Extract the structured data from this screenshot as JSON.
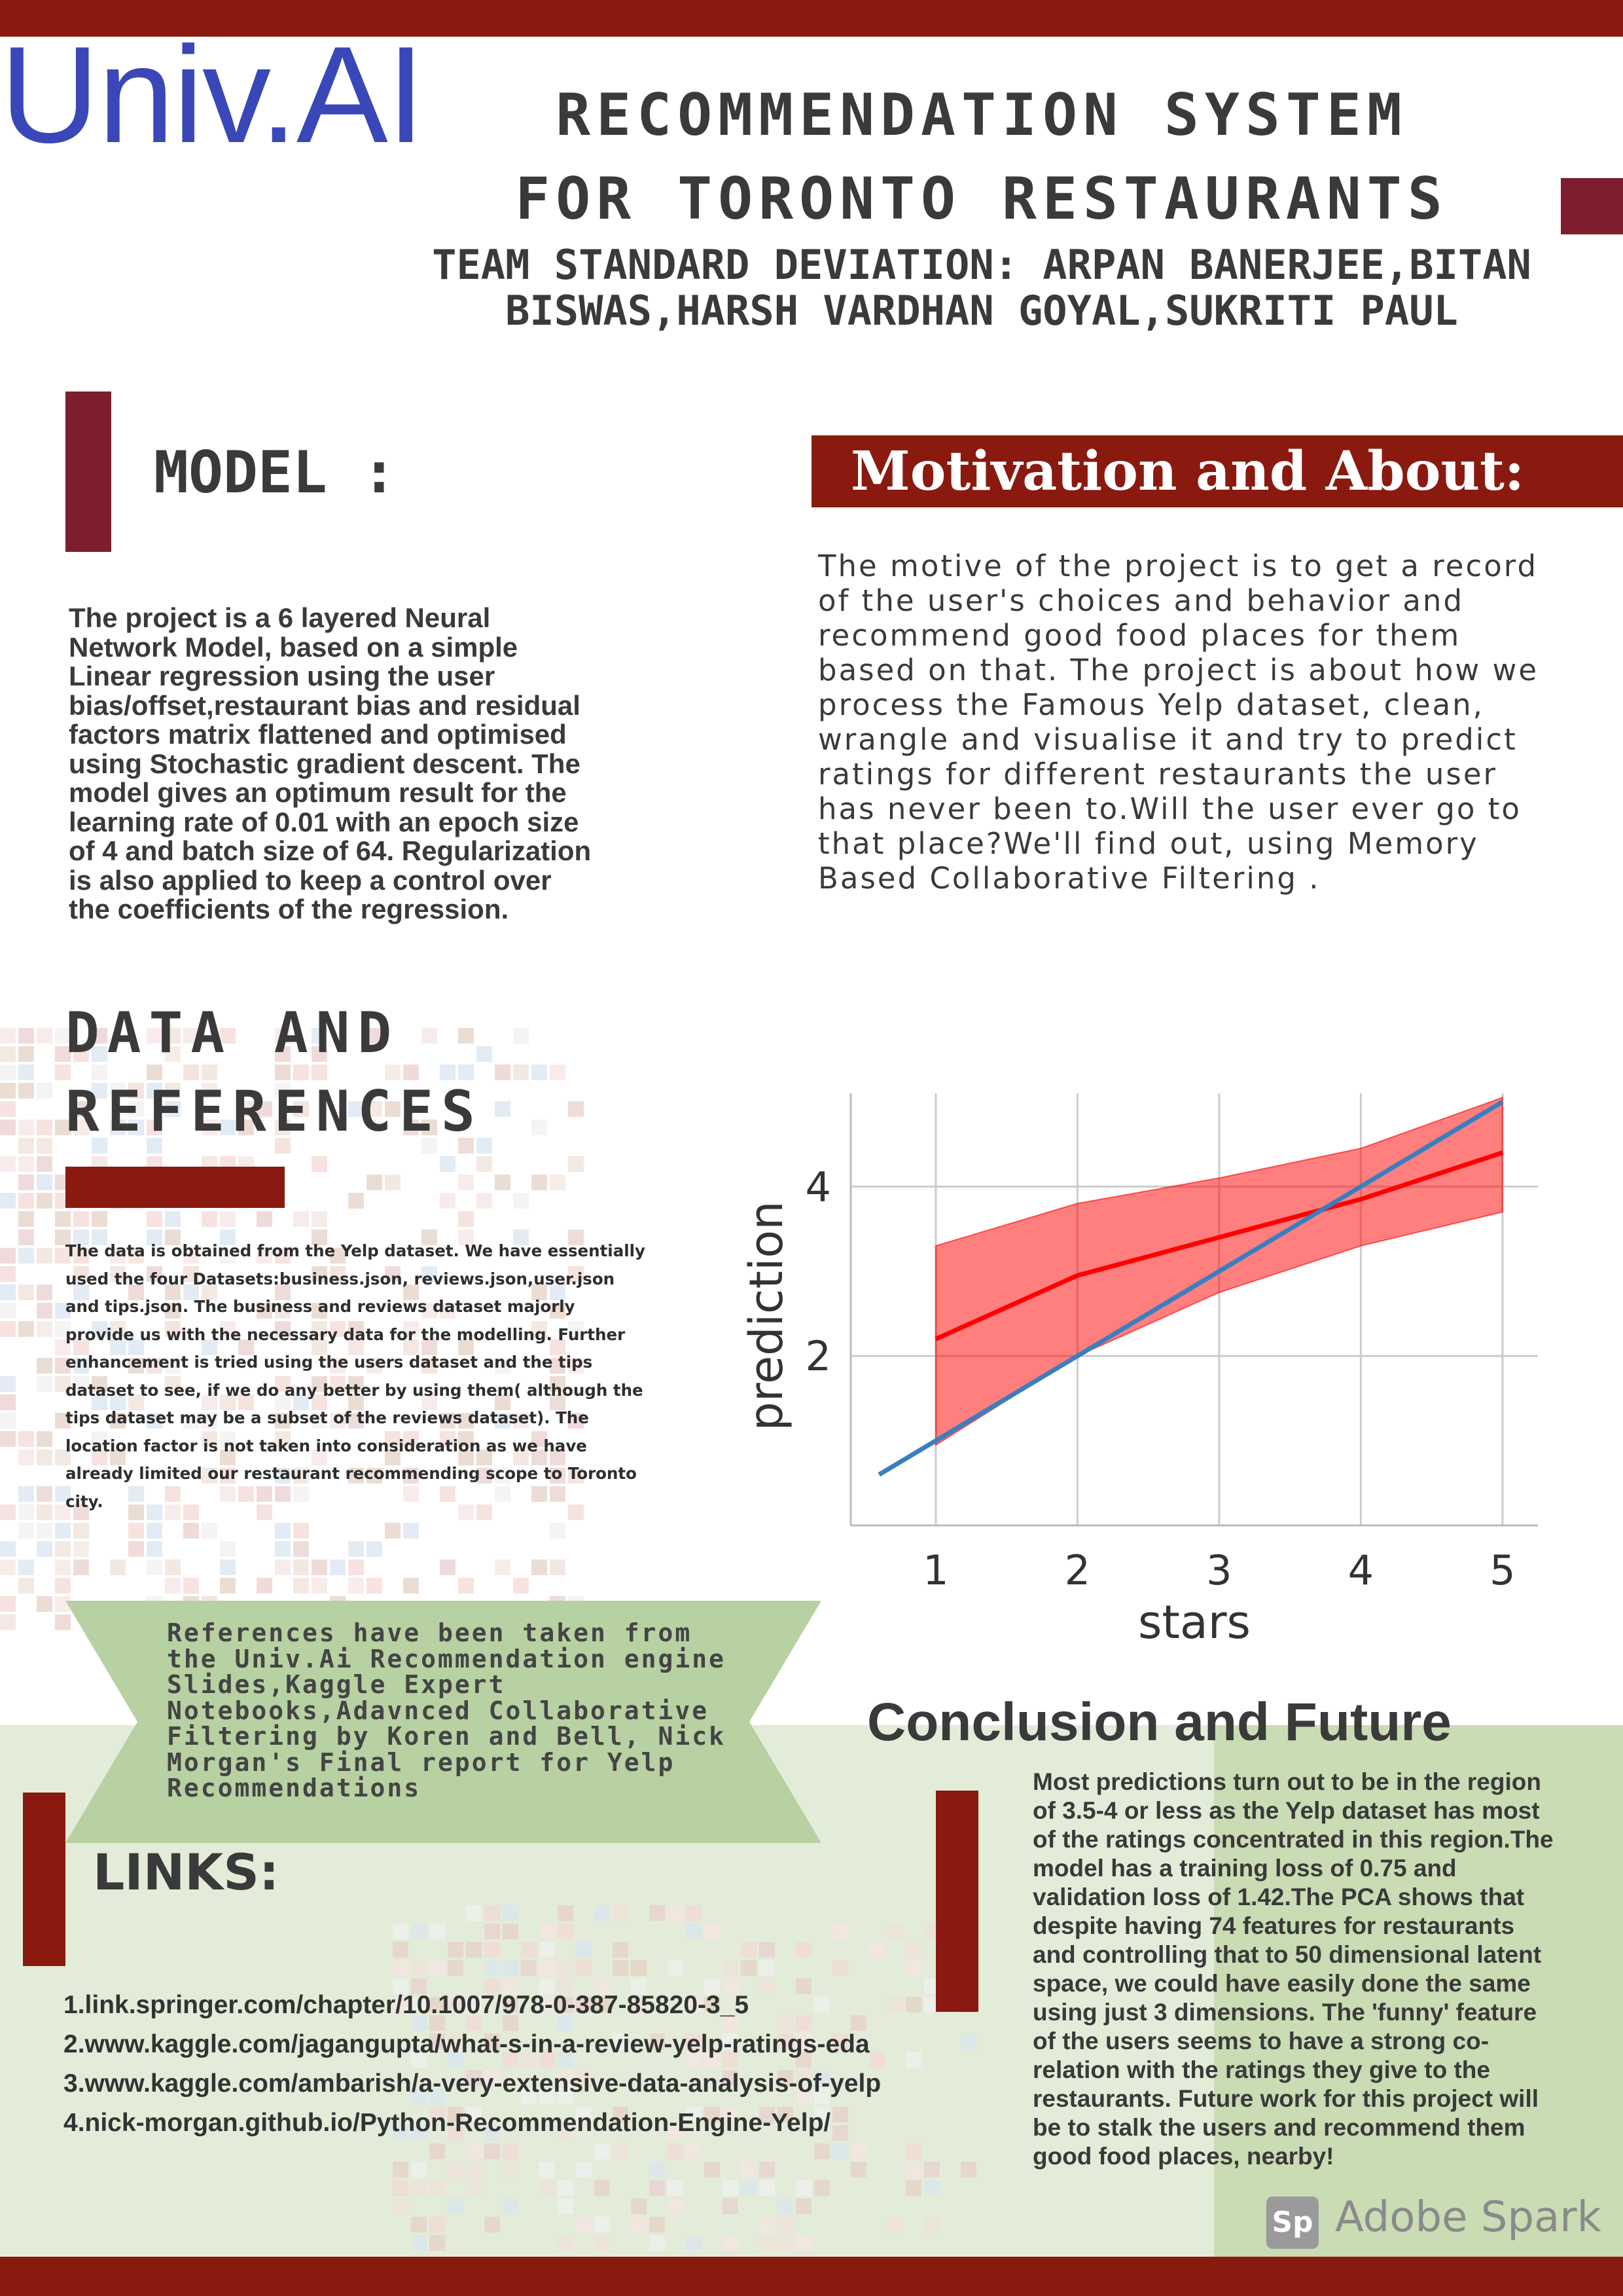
{
  "logo": {
    "text_bold": "Univ.",
    "text_light": "AI"
  },
  "title": {
    "line1": "RECOMMENDATION SYSTEM",
    "line2": "FOR TORONTO RESTAURANTS"
  },
  "team": "TEAM STANDARD DEVIATION: ARPAN BANERJEE,BITAN BISWAS,HARSH VARDHAN GOYAL,SUKRITI PAUL",
  "model": {
    "heading": "MODEL :",
    "body": "The project is a 6 layered Neural Network Model, based on a simple Linear regression using the user bias/offset,restaurant bias and residual factors matrix flattened and optimised using Stochastic gradient descent. The model gives an optimum result for the learning rate of 0.01 with an epoch size of 4 and batch size of 64. Regularization is also applied to keep a control over the coefficients of the regression."
  },
  "motivation": {
    "heading": "Motivation and About:",
    "body": "The motive of the project is to get a record of the user's choices and behavior and recommend good food places for them based on that. The project is about how we process the Famous Yelp dataset, clean, wrangle and visualise it and try to predict ratings for different restaurants the user has never been to.Will the user ever go to that place?We'll find out, using Memory Based Collaborative Filtering ."
  },
  "data_refs": {
    "heading_line1": "DATA AND",
    "heading_line2": "REFERENCES",
    "body": "The data is obtained from the Yelp dataset. We have essentially used the four Datasets:business.json, reviews.json,user.json and tips.json. The business and reviews dataset majorly provide us with the necessary data for the modelling. Further enhancement is tried using the users dataset and the tips dataset to see, if we do any better by using them( although the tips dataset may be a subset of the reviews dataset). The location factor is not taken into consideration as we have already limited our restaurant recommending scope to Toronto city.",
    "references": "References have been taken from the Univ.Ai Recommendation engine Slides,Kaggle Expert Notebooks,Adavnced Collaborative Filtering by Koren and Bell, Nick Morgan's Final report for Yelp Recommendations"
  },
  "links": {
    "heading": "LINKS:",
    "items": [
      "1.link.springer.com/chapter/10.1007/978-0-387-85820-3_5",
      "2.www.kaggle.com/jagangupta/what-s-in-a-review-yelp-ratings-eda",
      "3.www.kaggle.com/ambarish/a-very-extensive-data-analysis-of-yelp",
      "4.nick-morgan.github.io/Python-Recommendation-Engine-Yelp/"
    ]
  },
  "conclusion": {
    "heading": "Conclusion and Future",
    "body": "Most predictions turn out to be in the region of 3.5-4 or less as the Yelp dataset has most of the ratings concentrated in this region.The model has a training loss of 0.75 and validation loss of 1.42.The PCA shows that despite having 74 features for restaurants and controlling that to 50 dimensional latent space, we could have easily done the same using just 3 dimensions. The 'funny' feature of the users seems to have a strong co-relation with the ratings they give to the restaurants. Future work for this project will be to stalk the users and recommend them good food places, nearby!"
  },
  "branding": {
    "spark_logo": "Sp",
    "spark_text": "Adobe Spark"
  },
  "colors": {
    "maroon": "#8a1a0f",
    "plum": "#7d1e2e",
    "logo_blue": "#3a47b8",
    "ribbon_green": "#b7d1a2",
    "band_red": "#ff0000",
    "identity_blue": "#3a7ebf"
  },
  "chart_data": {
    "type": "line",
    "xlabel": "stars",
    "ylabel": "prediction",
    "xlim": [
      0.4,
      5.25
    ],
    "ylim": [
      0.0,
      5.1
    ],
    "xticks": [
      1,
      2,
      3,
      4,
      5
    ],
    "yticks": [
      2,
      4
    ],
    "grid": true,
    "series": [
      {
        "kind": "band",
        "x": [
          1,
          2,
          3,
          4,
          5
        ],
        "lower": [
          0.95,
          2.0,
          2.75,
          3.3,
          3.7
        ],
        "upper": [
          3.3,
          3.8,
          4.1,
          4.45,
          5.05
        ],
        "color": "#ff0000"
      },
      {
        "kind": "line",
        "x": [
          1,
          2,
          3,
          4,
          5
        ],
        "values": [
          2.2,
          2.95,
          3.4,
          3.85,
          4.4
        ],
        "color": "#ff0000"
      },
      {
        "kind": "line",
        "x": [
          0.6,
          5
        ],
        "values": [
          0.6,
          5.0
        ],
        "color": "#3a7ebf"
      }
    ]
  }
}
